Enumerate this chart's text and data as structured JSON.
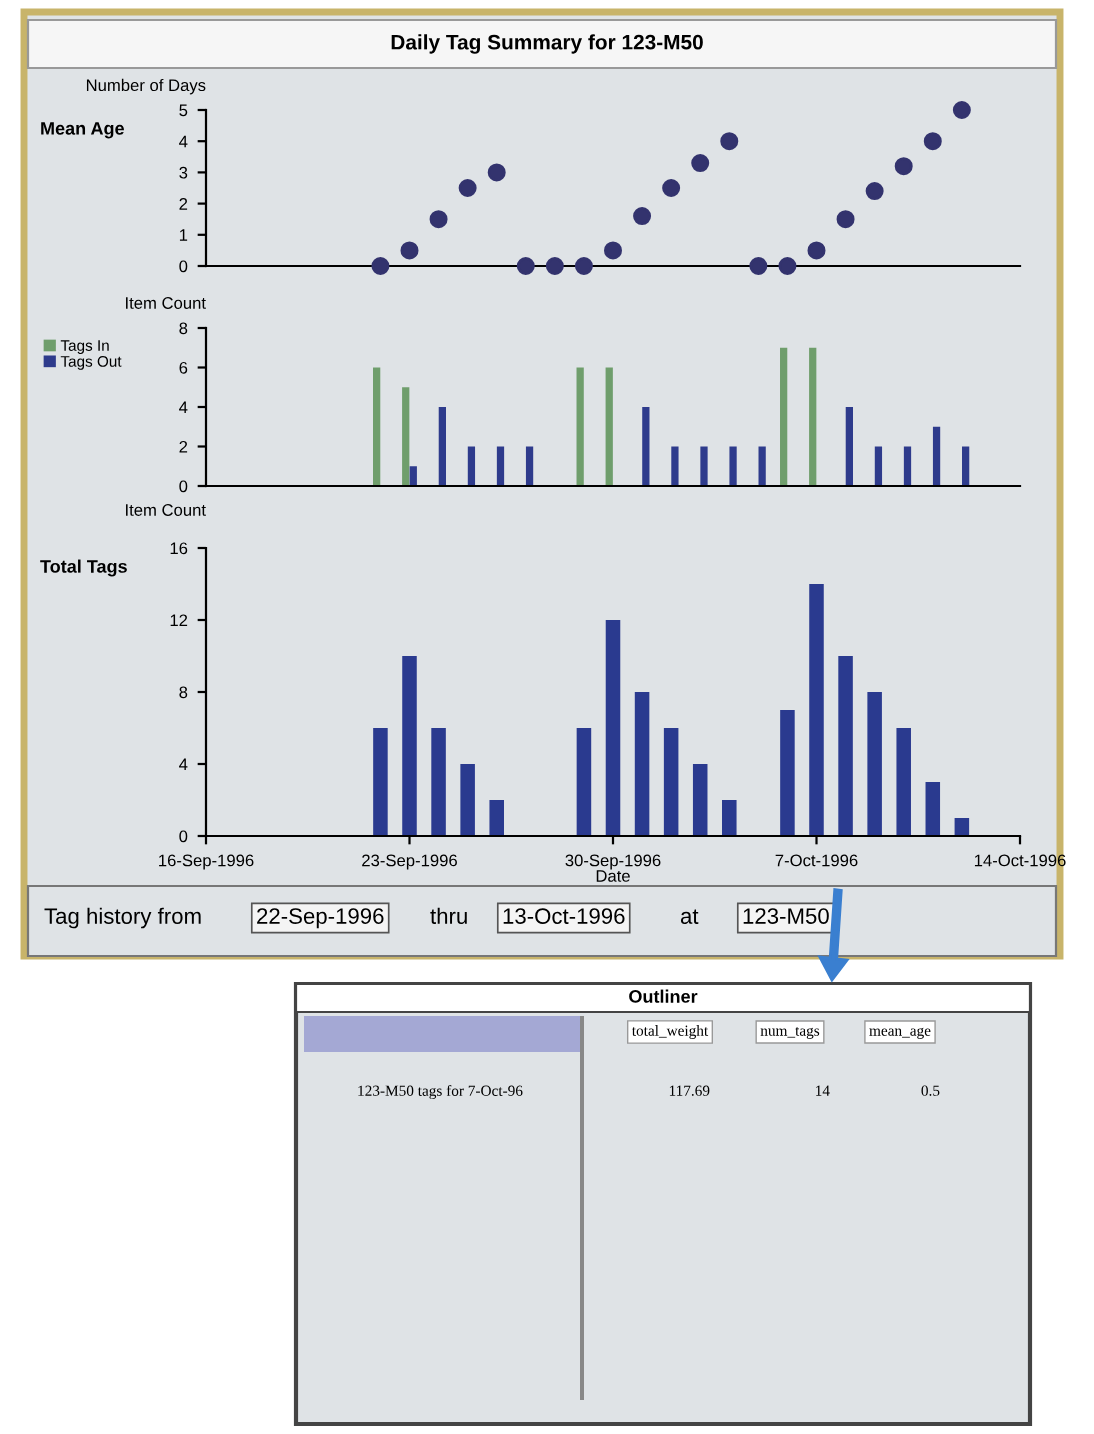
{
  "chart_data": [
    {
      "type": "scatter",
      "title": "Daily Tag Summary for 123-M50",
      "subtitle": "Mean Age",
      "ylabel": "Number of Days",
      "color": "#33336e",
      "marker": "circle",
      "xlim": [
        "1996-09-16",
        "1996-10-14"
      ],
      "ylim": [
        0,
        5
      ],
      "yticks": [
        0,
        1,
        2,
        3,
        4,
        5
      ],
      "tick_labels": "y",
      "x": [
        "1996-09-22",
        "1996-09-23",
        "1996-09-24",
        "1996-09-25",
        "1996-09-26",
        "1996-09-27",
        "1996-09-28",
        "1996-09-29",
        "1996-09-30",
        "1996-10-01",
        "1996-10-02",
        "1996-10-03",
        "1996-10-04",
        "1996-10-05",
        "1996-10-06",
        "1996-10-07",
        "1996-10-08",
        "1996-10-09",
        "1996-10-10",
        "1996-10-11",
        "1996-10-12"
      ],
      "values": [
        0,
        0.5,
        1.5,
        2.5,
        3,
        0,
        0,
        0,
        0.5,
        1.6,
        2.5,
        3.3,
        4,
        0,
        0,
        0.5,
        1.5,
        2.4,
        3.2,
        4,
        5
      ]
    },
    {
      "type": "bar",
      "ylabel": "Item Count",
      "legend": "left",
      "xlim": [
        "1996-09-16",
        "1996-10-14"
      ],
      "ylim": [
        0,
        8
      ],
      "yticks": [
        0,
        2,
        4,
        6,
        8
      ],
      "tick_labels": "y",
      "series": [
        {
          "name": "Tags In",
          "color": "#6f9e6c",
          "x": [
            "1996-09-22",
            "1996-09-23",
            "1996-09-29",
            "1996-09-30",
            "1996-10-06",
            "1996-10-07"
          ],
          "values": [
            6,
            5,
            6,
            6,
            7,
            7
          ]
        },
        {
          "name": "Tags Out",
          "color": "#2e3b8c",
          "x": [
            "1996-09-23",
            "1996-09-24",
            "1996-09-25",
            "1996-09-26",
            "1996-09-27",
            "1996-10-01",
            "1996-10-02",
            "1996-10-03",
            "1996-10-04",
            "1996-10-05",
            "1996-10-08",
            "1996-10-09",
            "1996-10-10",
            "1996-10-11",
            "1996-10-12"
          ],
          "values": [
            1,
            4,
            2,
            2,
            2,
            4,
            2,
            2,
            2,
            2,
            4,
            2,
            2,
            3,
            2
          ]
        }
      ]
    },
    {
      "type": "bar",
      "subtitle": "Total Tags",
      "ylabel": "Item Count",
      "xlabel": "Date",
      "color": "#2a3a8f",
      "xlim": [
        "1996-09-16",
        "1996-10-14"
      ],
      "ylim": [
        0,
        16
      ],
      "yticks": [
        0,
        4,
        8,
        12,
        16
      ],
      "xticks": [
        {
          "value": "1996-09-16",
          "label": "16-Sep-1996"
        },
        {
          "value": "1996-09-23",
          "label": "23-Sep-1996"
        },
        {
          "value": "1996-09-30",
          "label": "30-Sep-1996"
        },
        {
          "value": "1996-10-07",
          "label": "7-Oct-1996"
        },
        {
          "value": "1996-10-14",
          "label": "14-Oct-1996"
        }
      ],
      "x": [
        "1996-09-22",
        "1996-09-23",
        "1996-09-24",
        "1996-09-25",
        "1996-09-26",
        "1996-09-29",
        "1996-09-30",
        "1996-10-01",
        "1996-10-02",
        "1996-10-03",
        "1996-10-04",
        "1996-10-06",
        "1996-10-07",
        "1996-10-08",
        "1996-10-09",
        "1996-10-10",
        "1996-10-11",
        "1996-10-12"
      ],
      "values": [
        6,
        10,
        6,
        4,
        2,
        6,
        12,
        8,
        6,
        4,
        2,
        7,
        14,
        10,
        8,
        6,
        3,
        1
      ],
      "annotations": [
        "Tag history from",
        "22-Sep-1996",
        "thru",
        "13-Oct-1996",
        "at",
        "123-M50"
      ]
    },
    {
      "type": "other",
      "title": "Outliner",
      "categories": [
        "total_weight",
        "num_tags",
        "mean_age"
      ],
      "annotations": [
        "123-M50 tags for 7-Oct-96",
        "117.69",
        "14",
        "0.5"
      ]
    }
  ]
}
